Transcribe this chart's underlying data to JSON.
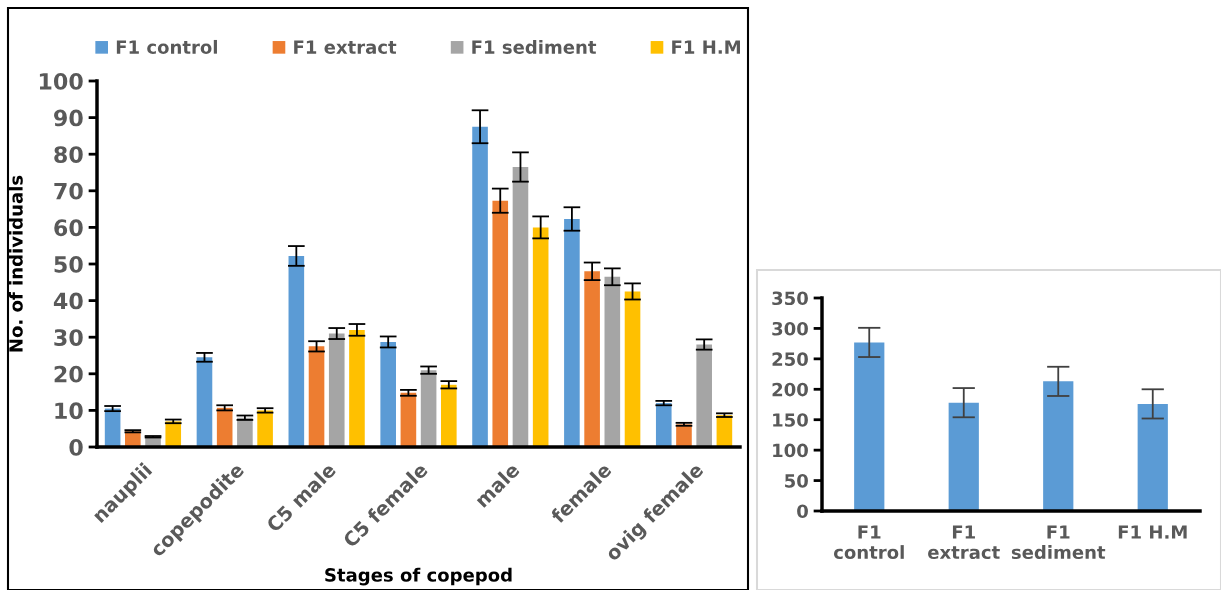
{
  "chart_data": [
    {
      "type": "bar",
      "xlabel": "Stages of copepod",
      "ylabel": "No. of individuals",
      "categories": [
        "nauplii",
        "copepodite",
        "C5 male",
        "C5 female",
        "male",
        "female",
        "ovig female"
      ],
      "series": [
        {
          "name": "F1 control",
          "color": "#5b9bd5",
          "values": [
            10.5,
            24.5,
            52.2,
            28.7,
            87.5,
            62.3,
            12
          ],
          "errors": [
            0.7,
            1.2,
            2.7,
            1.5,
            4.5,
            3.2,
            0.6
          ]
        },
        {
          "name": "F1 extract",
          "color": "#ed7d31",
          "values": [
            4.3,
            10.7,
            27.5,
            14.8,
            67.3,
            48,
            6.2
          ],
          "errors": [
            0.3,
            0.7,
            1.4,
            0.8,
            3.3,
            2.4,
            0.4
          ]
        },
        {
          "name": "F1 sediment",
          "color": "#a5a5a5",
          "values": [
            2.8,
            8,
            31,
            21,
            76.5,
            46.5,
            28
          ],
          "errors": [
            0.2,
            0.6,
            1.5,
            1,
            4,
            2.3,
            1.4
          ]
        },
        {
          "name": "F1 H.M",
          "color": "#ffc000",
          "values": [
            7,
            10,
            32,
            17,
            60,
            42.5,
            8.7
          ],
          "errors": [
            0.5,
            0.6,
            1.6,
            1,
            3,
            2.2,
            0.5
          ]
        }
      ],
      "ylim": [
        0,
        100
      ],
      "yticks": [
        0,
        10,
        20,
        30,
        40,
        50,
        60,
        70,
        80,
        90,
        100
      ],
      "grid": false,
      "legend": "top"
    },
    {
      "type": "bar",
      "categories": [
        "F1\ncontrol",
        "F1\nextract",
        "F1\nsediment",
        "F1 H.M"
      ],
      "values": [
        277,
        178,
        213,
        176
      ],
      "errors": [
        24,
        24,
        24,
        24
      ],
      "color": "#5b9bd5",
      "ylim": [
        0,
        350
      ],
      "yticks": [
        0,
        50,
        100,
        150,
        200,
        250,
        300,
        350
      ],
      "grid": false,
      "legend": false
    }
  ]
}
